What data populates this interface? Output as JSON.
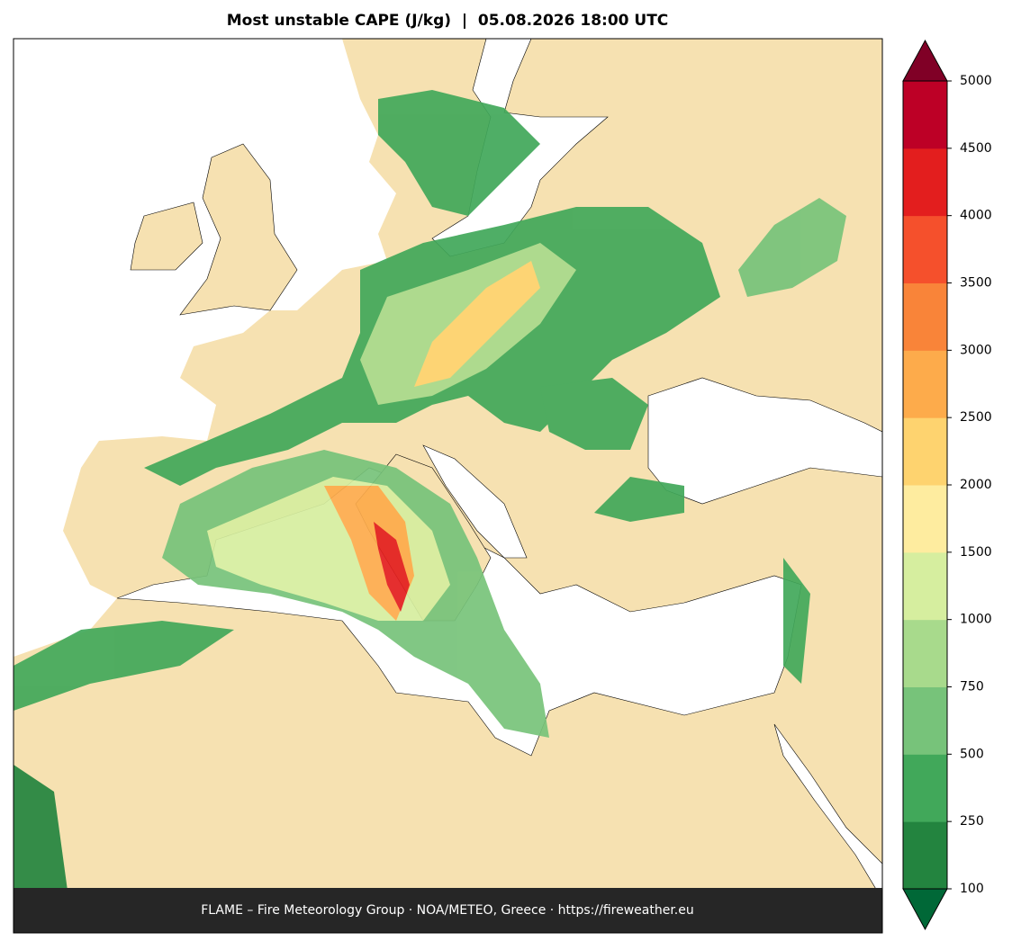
{
  "title": "Most unstable CAPE (J/kg)  |  05.08.2026 18:00 UTC",
  "footer": "FLAME – Fire Meteorology Group · NOA/METEO, Greece · https://fireweather.eu",
  "colorbar": {
    "ticks": [
      100,
      250,
      500,
      750,
      1000,
      1500,
      2000,
      2500,
      3000,
      3500,
      4000,
      4500,
      5000
    ],
    "colors": [
      "#23843f",
      "#41a85a",
      "#77c37a",
      "#a8da8c",
      "#d6ee9f",
      "#feec9f",
      "#fed36f",
      "#fdab4b",
      "#f98439",
      "#f5502c",
      "#e31e1e",
      "#bd0026"
    ],
    "under_color": "#006837",
    "over_color": "#800026"
  }
}
